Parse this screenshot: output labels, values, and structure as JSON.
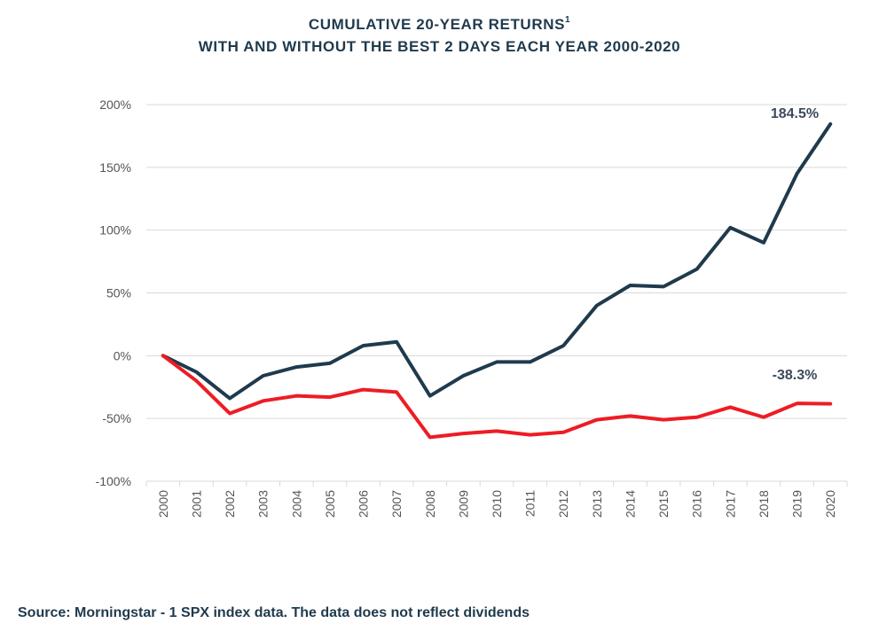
{
  "title": {
    "line1": "CUMULATIVE 20-YEAR RETURNS",
    "superscript": "1",
    "line2": "WITH AND WITHOUT THE BEST 2 DAYS EACH YEAR 2000-2020"
  },
  "source": "Source: Morningstar - 1 SPX index data. The data does not reflect dividends",
  "colors": {
    "with_best_days": "#1f3a4d",
    "without_best_days": "#ee1c24",
    "grid": "#d9d9d9",
    "text": "#555555"
  },
  "chart_data": {
    "type": "line",
    "title": "CUMULATIVE 20-YEAR RETURNS WITH AND WITHOUT THE BEST 2 DAYS EACH YEAR 2000-2020",
    "xlabel": "",
    "ylabel": "",
    "ylim": [
      -100,
      200
    ],
    "y_ticks": [
      {
        "value": 200,
        "label": "200%"
      },
      {
        "value": 150,
        "label": "150%"
      },
      {
        "value": 100,
        "label": "100%"
      },
      {
        "value": 50,
        "label": "50%"
      },
      {
        "value": 0,
        "label": "0%"
      },
      {
        "value": -50,
        "label": "-50%"
      },
      {
        "value": -100,
        "label": "-100%"
      }
    ],
    "grid": true,
    "categories": [
      "2000",
      "2001",
      "2002",
      "2003",
      "2004",
      "2005",
      "2006",
      "2007",
      "2008",
      "2009",
      "2010",
      "2011",
      "2012",
      "2013",
      "2014",
      "2015",
      "2016",
      "2017",
      "2018",
      "2019",
      "2020"
    ],
    "series": [
      {
        "color": "#1f3a4d",
        "values": [
          0,
          -13,
          -34,
          -16,
          -9,
          -6,
          8,
          11,
          -32,
          -16,
          -5,
          -5,
          8,
          40,
          56,
          55,
          69,
          102,
          90,
          145,
          184.5
        ],
        "end_label": "184.5%"
      },
      {
        "color": "#ee1c24",
        "values": [
          0,
          -20,
          -46,
          -36,
          -32,
          -33,
          -27,
          -29,
          -65,
          -62,
          -60,
          -63,
          -61,
          -51,
          -48,
          -51,
          -49,
          -41,
          -49,
          -38,
          -38.3
        ],
        "end_label": "-38.3%"
      }
    ]
  }
}
